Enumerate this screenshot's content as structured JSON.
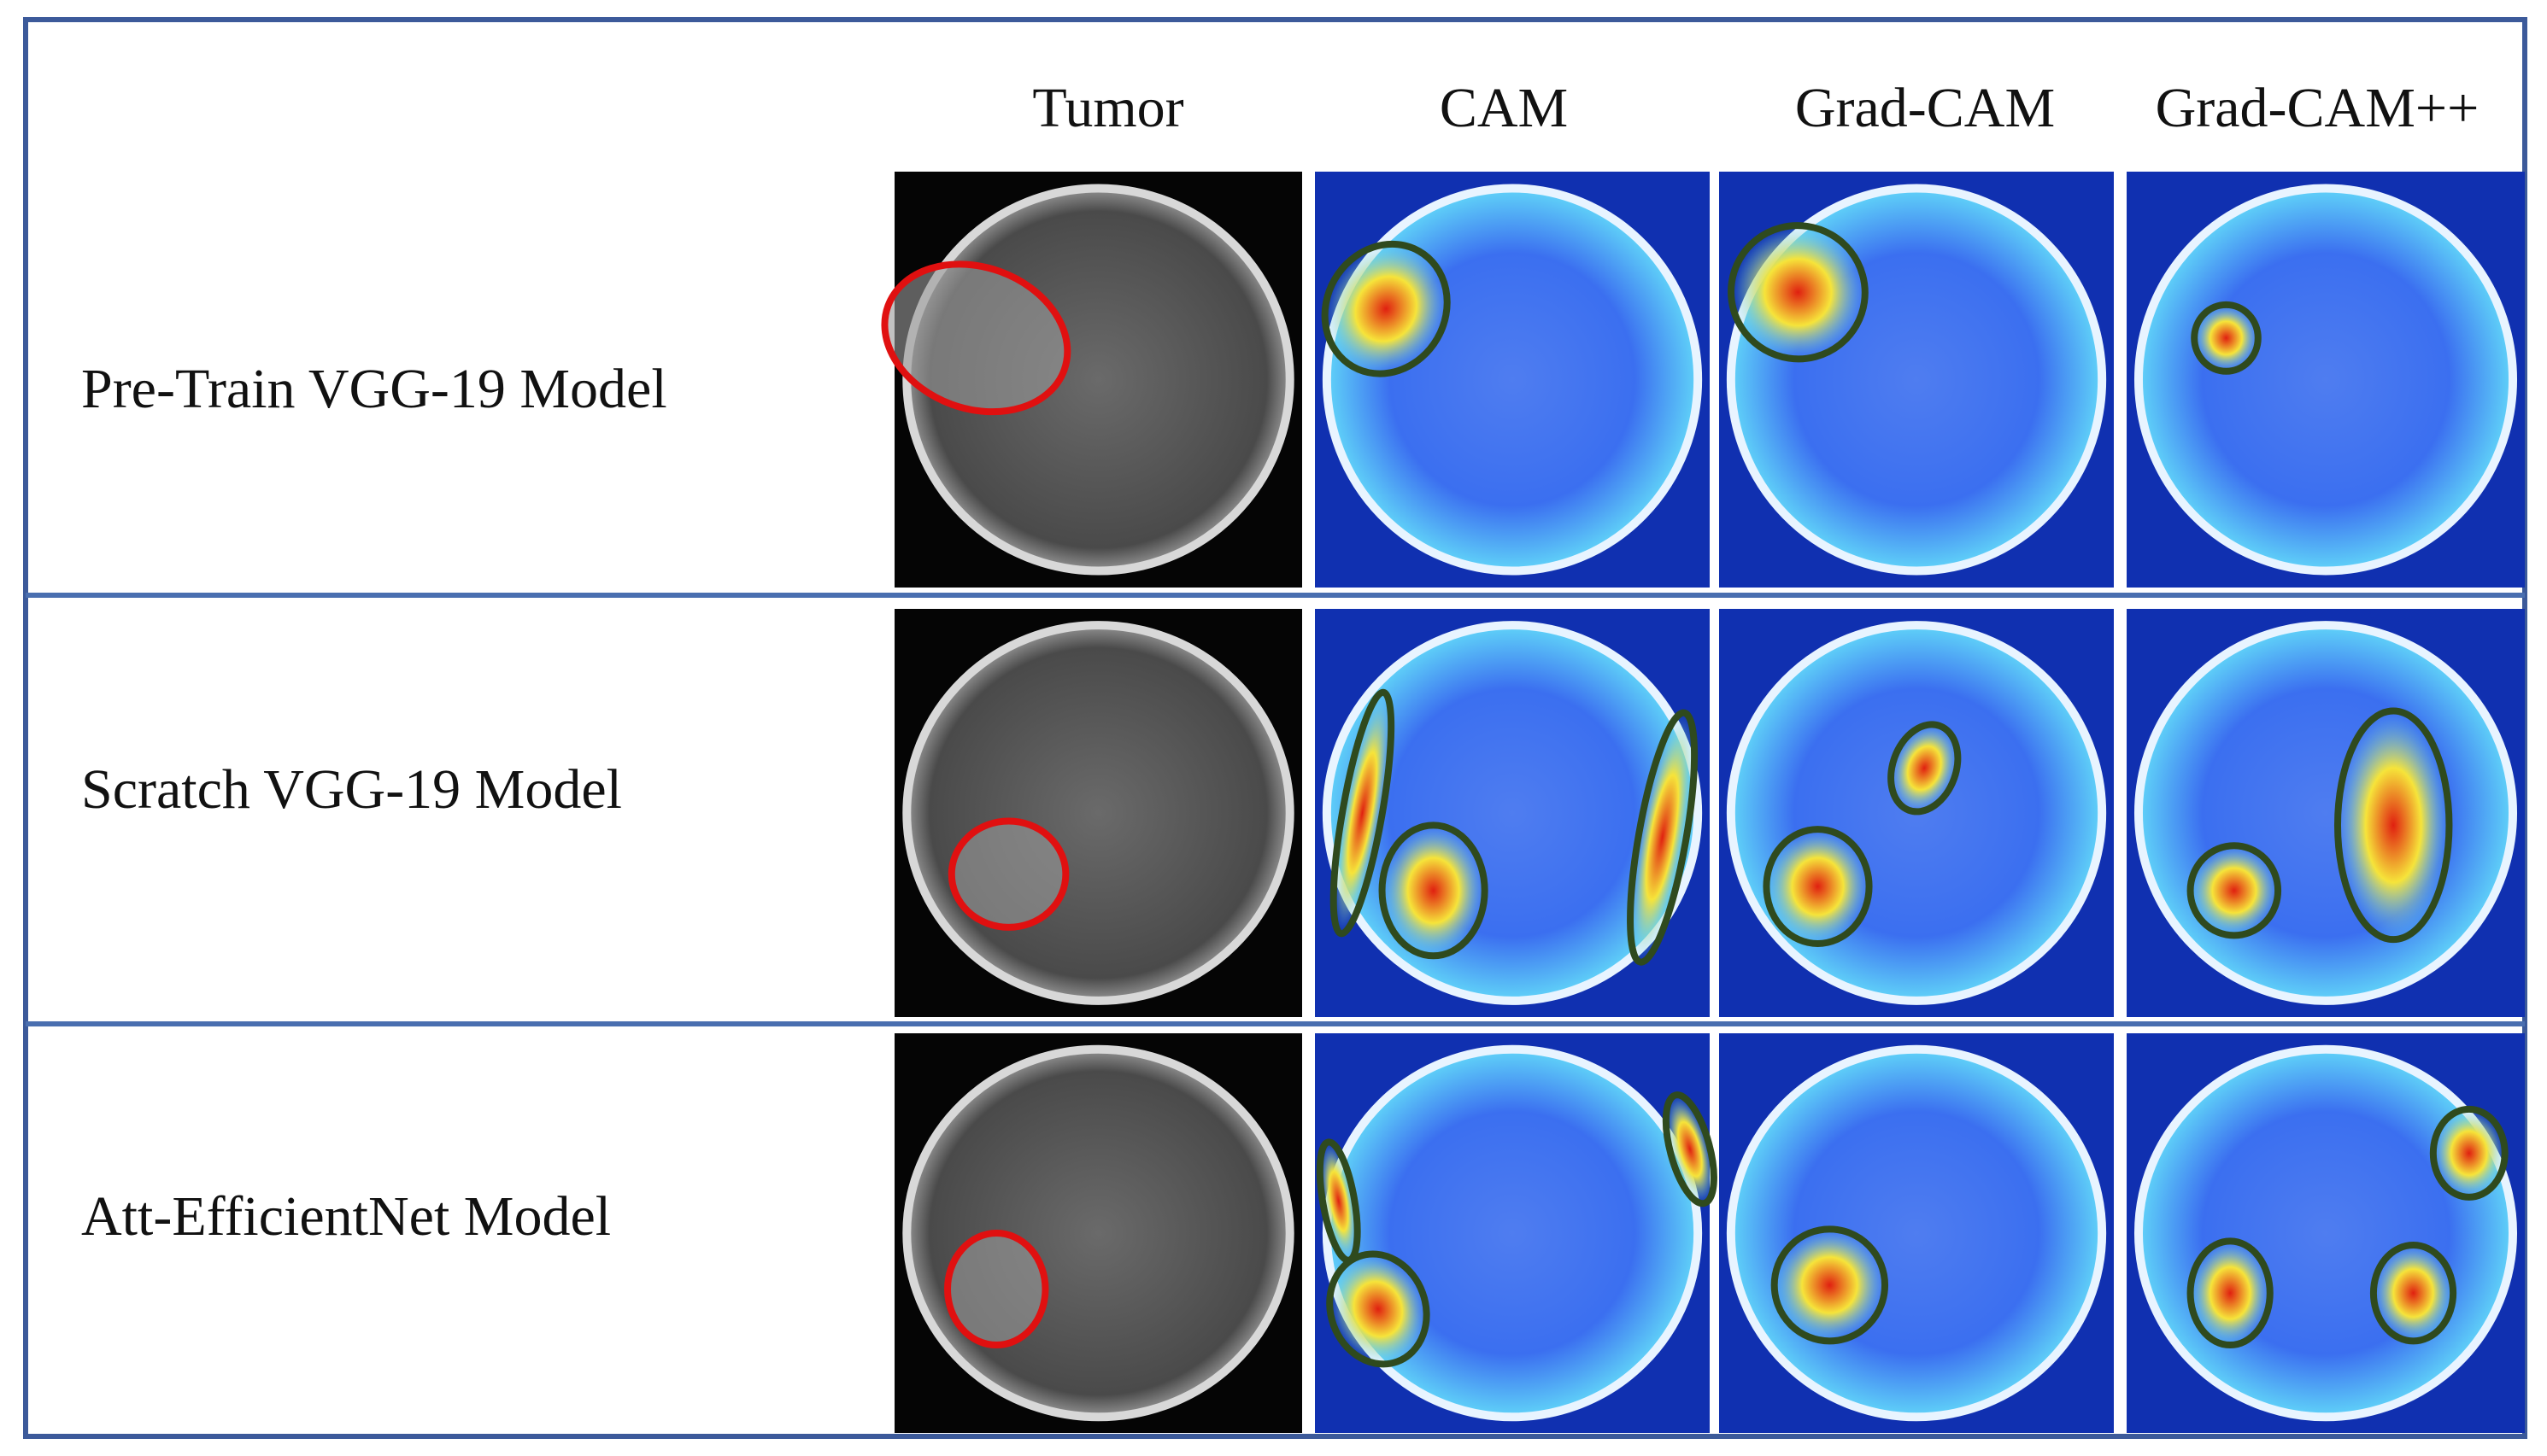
{
  "columns": [
    "Tumor",
    "CAM",
    "Grad-CAM",
    "Grad-CAM++"
  ],
  "rows": [
    {
      "label": "Pre-Train VGG-19 Model"
    },
    {
      "label": "Scratch VGG-19 Model"
    },
    {
      "label": "Att-EfficientNet Model"
    }
  ]
}
